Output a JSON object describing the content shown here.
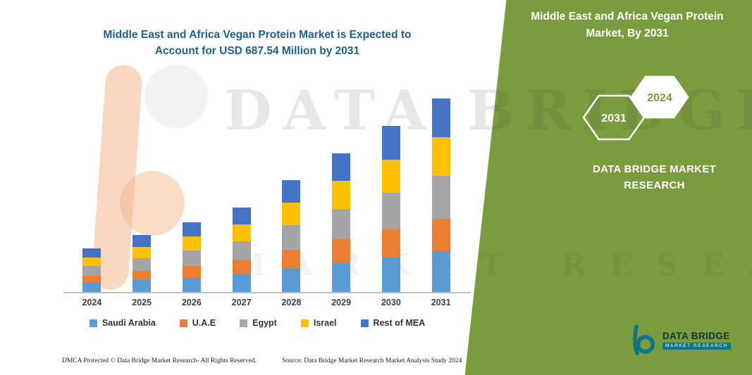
{
  "chart_title": {
    "line1": "Middle East and Africa Vegan Protein Market is Expected to",
    "line2": "Account for USD 687.54 Million by 2031"
  },
  "side_panel": {
    "title": "Middle East and Africa Vegan Protein Market, By 2031",
    "hexagon_back_year": "2031",
    "hexagon_front_year": "2024",
    "brand_line1": "DATA BRIDGE MARKET",
    "brand_line2": "RESEARCH",
    "accent_green": "#7a9c3e"
  },
  "watermark": {
    "line1": "DATA BRIDGE",
    "line2": "MARKET RESEARCH"
  },
  "logo": {
    "title": "DATA BRIDGE",
    "subtitle": "MARKET RESEARCH",
    "teal": "#0e7787"
  },
  "footer": {
    "left": "DMCA Protected © Data Bridge Market Research-  All Rights Reserved.",
    "source": "Source: Data Bridge Market Research  Market Analysis Study 2024"
  },
  "chart_data": {
    "type": "bar",
    "stacked": true,
    "title": "Middle East and Africa Vegan Protein Market is Expected to Account for USD 687.54 Million by 2031",
    "categories": [
      "2024",
      "2025",
      "2026",
      "2027",
      "2028",
      "2029",
      "2030",
      "2031"
    ],
    "series": [
      {
        "name": "Saudi Arabia",
        "color": "#5B9BD5",
        "values": [
          32,
          42,
          51,
          63,
          83,
          103,
          123,
          144
        ]
      },
      {
        "name": "U.A.E",
        "color": "#ED7D31",
        "values": [
          26,
          34,
          42,
          51,
          67,
          84,
          100,
          117
        ]
      },
      {
        "name": "Egypt",
        "color": "#A5A5A5",
        "values": [
          34,
          45,
          55,
          67,
          88,
          109,
          130,
          151.54
        ]
      },
      {
        "name": "Israel",
        "color": "#FFC000",
        "values": [
          31,
          40,
          49,
          60,
          79,
          98,
          118,
          137
        ]
      },
      {
        "name": "Rest of MEA",
        "color": "#4472C4",
        "values": [
          31,
          41,
          50,
          60,
          80,
          99,
          118,
          138
        ]
      }
    ],
    "totals": [
      154,
      202,
      247,
      301,
      397,
      493,
      589,
      687.54
    ],
    "units": "USD Million",
    "annotation": "2031 total = USD 687.54 Million",
    "values_estimated_from_pixels": true,
    "xlabel": "",
    "ylabel": "",
    "ylim": [
      0,
      700
    ],
    "grid": false,
    "y_axis_visible": false,
    "legend_position": "bottom"
  }
}
